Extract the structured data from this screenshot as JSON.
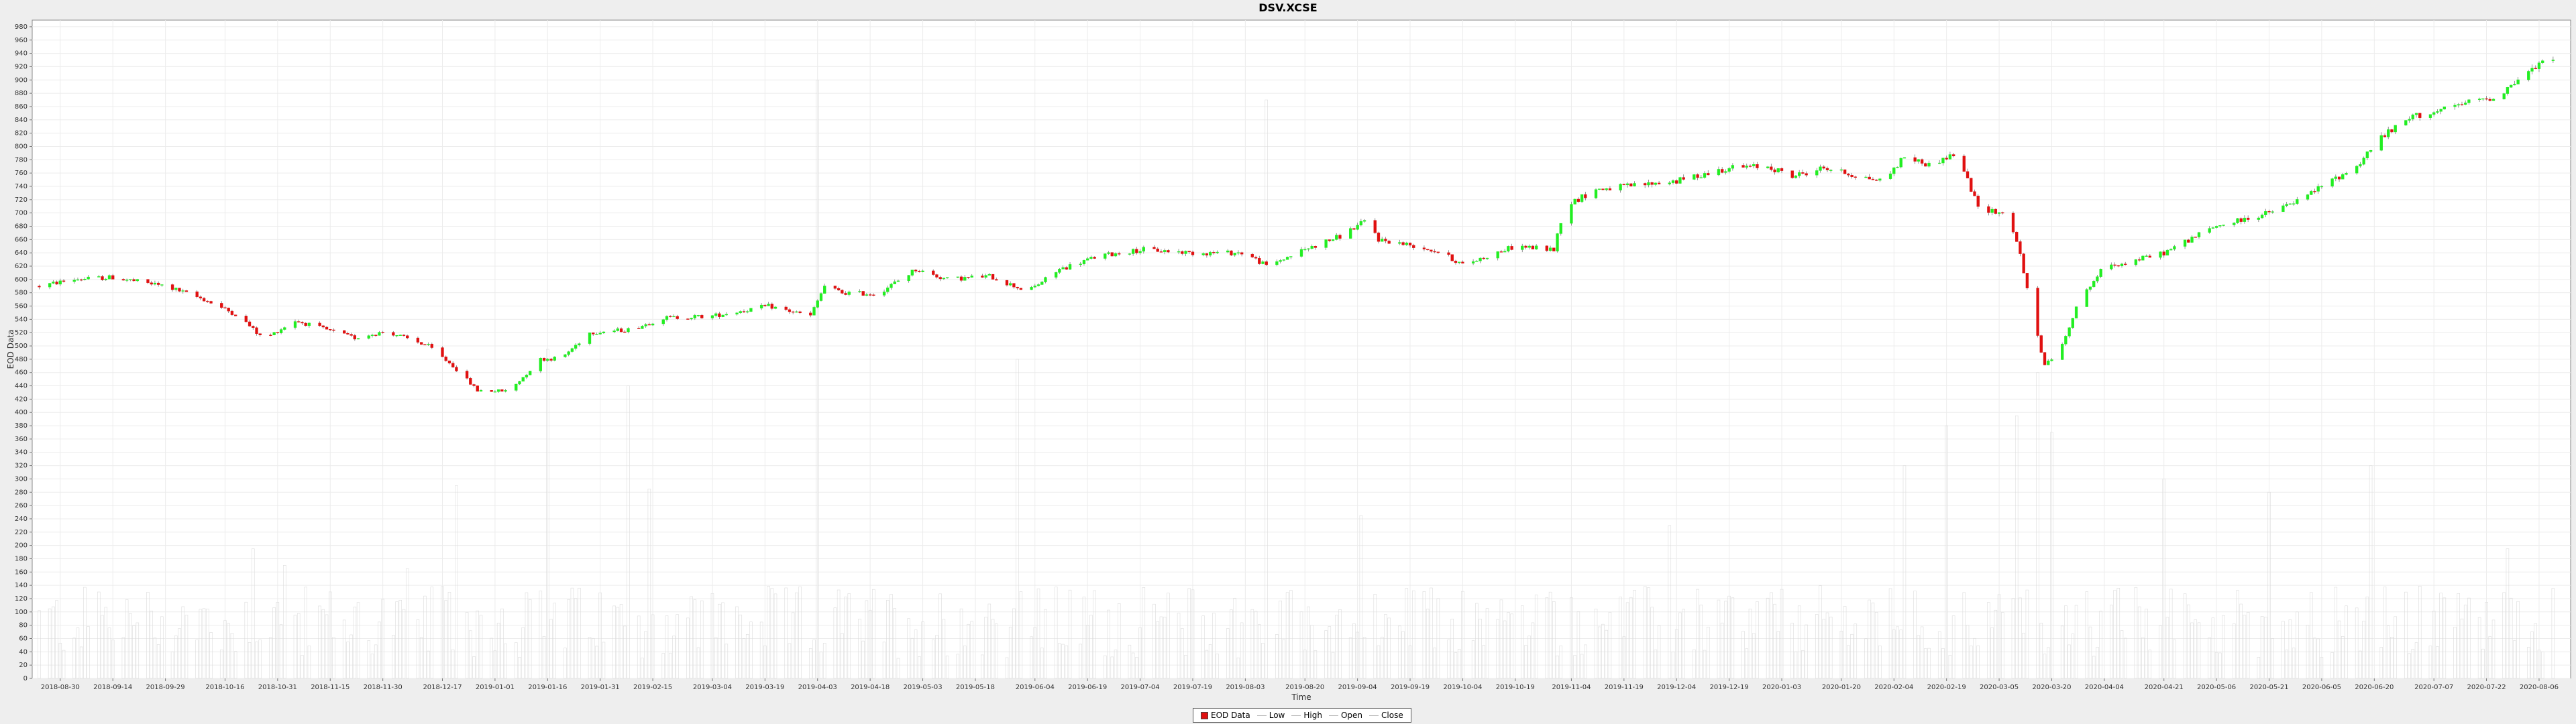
{
  "chart_data": {
    "type": "candlestick",
    "title": "DSV.XCSE",
    "xlabel": "Time",
    "ylabel": "EOD Data",
    "ylim": [
      0,
      990
    ],
    "ytick_step": 20,
    "grid": true,
    "legend_position": "bottom-center",
    "legend": [
      "EOD Data",
      "Low",
      "High",
      "Open",
      "Close"
    ],
    "x_tick_labels": [
      "2018-08-30",
      "2018-09-14",
      "2018-09-29",
      "2018-10-16",
      "2018-10-31",
      "2018-11-15",
      "2018-11-30",
      "2018-12-17",
      "2019-01-01",
      "2019-01-16",
      "2019-01-31",
      "2019-02-15",
      "2019-03-04",
      "2019-03-19",
      "2019-04-03",
      "2019-04-18",
      "2019-05-03",
      "2019-05-18",
      "2019-06-04",
      "2019-06-19",
      "2019-07-04",
      "2019-07-19",
      "2019-08-03",
      "2019-08-20",
      "2019-09-04",
      "2019-09-19",
      "2019-10-04",
      "2019-10-19",
      "2019-11-04",
      "2019-11-19",
      "2019-12-04",
      "2019-12-19",
      "2020-01-03",
      "2020-01-20",
      "2020-02-04",
      "2020-02-19",
      "2020-03-05",
      "2020-03-20",
      "2020-04-04",
      "2020-04-21",
      "2020-05-06",
      "2020-05-21",
      "2020-06-05",
      "2020-06-20",
      "2020-07-07",
      "2020-07-22",
      "2020-08-06"
    ],
    "x_range": [
      "2018-08-22",
      "2020-08-15"
    ],
    "price_path": [
      [
        "2018-08-24",
        590
      ],
      [
        "2018-09-03",
        600
      ],
      [
        "2018-09-14",
        603
      ],
      [
        "2018-09-29",
        590
      ],
      [
        "2018-10-10",
        570
      ],
      [
        "2018-10-20",
        545
      ],
      [
        "2018-10-27",
        510
      ],
      [
        "2018-11-05",
        538
      ],
      [
        "2018-11-22",
        512
      ],
      [
        "2018-12-01",
        522
      ],
      [
        "2018-12-13",
        500
      ],
      [
        "2018-12-20",
        470
      ],
      [
        "2018-12-27",
        433
      ],
      [
        "2019-01-05",
        432
      ],
      [
        "2019-01-14",
        480
      ],
      [
        "2019-01-20",
        482
      ],
      [
        "2019-01-28",
        520
      ],
      [
        "2019-02-09",
        525
      ],
      [
        "2019-02-18",
        542
      ],
      [
        "2019-03-04",
        545
      ],
      [
        "2019-03-20",
        560
      ],
      [
        "2019-04-01",
        545
      ],
      [
        "2019-04-05",
        590
      ],
      [
        "2019-04-10",
        580
      ],
      [
        "2019-04-20",
        578
      ],
      [
        "2019-05-01",
        615
      ],
      [
        "2019-05-10",
        600
      ],
      [
        "2019-05-22",
        605
      ],
      [
        "2019-06-02",
        582
      ],
      [
        "2019-06-11",
        615
      ],
      [
        "2019-06-22",
        635
      ],
      [
        "2019-07-05",
        645
      ],
      [
        "2019-07-19",
        640
      ],
      [
        "2019-08-03",
        640
      ],
      [
        "2019-08-09",
        620
      ],
      [
        "2019-08-20",
        645
      ],
      [
        "2019-08-30",
        665
      ],
      [
        "2019-09-07",
        690
      ],
      [
        "2019-09-10",
        660
      ],
      [
        "2019-09-21",
        650
      ],
      [
        "2019-09-28",
        640
      ],
      [
        "2019-10-04",
        622
      ],
      [
        "2019-10-19",
        650
      ],
      [
        "2019-10-30",
        645
      ],
      [
        "2019-11-02",
        710
      ],
      [
        "2019-11-11",
        735
      ],
      [
        "2019-11-23",
        742
      ],
      [
        "2019-12-04",
        748
      ],
      [
        "2019-12-19",
        768
      ],
      [
        "2019-12-30",
        770
      ],
      [
        "2020-01-06",
        755
      ],
      [
        "2020-01-15",
        768
      ],
      [
        "2020-01-25",
        755
      ],
      [
        "2020-02-01",
        748
      ],
      [
        "2020-02-07",
        785
      ],
      [
        "2020-02-14",
        772
      ],
      [
        "2020-02-22",
        790
      ],
      [
        "2020-02-28",
        708
      ],
      [
        "2020-03-06",
        700
      ],
      [
        "2020-03-10",
        660
      ],
      [
        "2020-03-14",
        560
      ],
      [
        "2020-03-18",
        470
      ],
      [
        "2020-03-23",
        500
      ],
      [
        "2020-03-27",
        560
      ],
      [
        "2020-04-04",
        620
      ],
      [
        "2020-04-10",
        625
      ],
      [
        "2020-04-21",
        640
      ],
      [
        "2020-04-30",
        665
      ],
      [
        "2020-05-06",
        680
      ],
      [
        "2020-05-21",
        700
      ],
      [
        "2020-05-30",
        720
      ],
      [
        "2020-06-05",
        740
      ],
      [
        "2020-06-15",
        770
      ],
      [
        "2020-06-21",
        810
      ],
      [
        "2020-07-01",
        845
      ],
      [
        "2020-07-10",
        855
      ],
      [
        "2020-07-18",
        868
      ],
      [
        "2020-07-25",
        875
      ],
      [
        "2020-08-01",
        905
      ],
      [
        "2020-08-10",
        935
      ]
    ],
    "volume_spikes": [
      [
        "2018-09-10",
        130
      ],
      [
        "2018-10-20",
        250
      ],
      [
        "2018-10-24",
        195
      ],
      [
        "2018-11-02",
        170
      ],
      [
        "2018-12-07",
        165
      ],
      [
        "2018-12-21",
        290
      ],
      [
        "2019-01-16",
        495
      ],
      [
        "2019-02-08",
        440
      ],
      [
        "2019-02-14",
        285
      ],
      [
        "2019-04-03",
        900
      ],
      [
        "2019-05-05",
        325
      ],
      [
        "2019-05-30",
        480
      ],
      [
        "2019-07-28",
        295
      ],
      [
        "2019-08-09",
        870
      ],
      [
        "2019-08-17",
        310
      ],
      [
        "2019-09-05",
        245
      ],
      [
        "2019-11-02",
        225
      ],
      [
        "2019-12-02",
        230
      ],
      [
        "2020-02-07",
        320
      ],
      [
        "2020-02-19",
        380
      ],
      [
        "2020-03-10",
        395
      ],
      [
        "2020-03-16",
        460
      ],
      [
        "2020-03-20",
        370
      ],
      [
        "2020-04-21",
        300
      ],
      [
        "2020-05-21",
        280
      ],
      [
        "2020-06-19",
        320
      ],
      [
        "2020-07-28",
        195
      ]
    ]
  }
}
